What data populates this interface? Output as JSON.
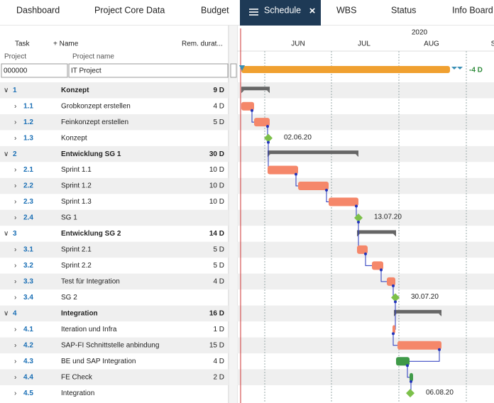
{
  "tabs": [
    "Dashboard",
    "Project Core Data",
    "Budget",
    "Schedule",
    "WBS",
    "Status",
    "Info Board"
  ],
  "columns": {
    "task": "Task",
    "name": "+ Name",
    "duration": "Rem. durat...",
    "project": "Project",
    "project_name": "Project name"
  },
  "project": {
    "number": "000000",
    "name": "IT Project",
    "delta": "-4 D"
  },
  "timeline": {
    "year": "2020",
    "months": [
      "JUN",
      "JUL",
      "AUG",
      "S"
    ]
  },
  "rows": [
    {
      "id": "1",
      "name": "Konzept",
      "duration": "9 D"
    },
    {
      "id": "1.1",
      "name": "Grobkonzept erstellen",
      "duration": "4 D"
    },
    {
      "id": "1.2",
      "name": "Feinkonzept erstellen",
      "duration": "5 D"
    },
    {
      "id": "1.3",
      "name": "Konzept",
      "milestone": "02.06.20"
    },
    {
      "id": "2",
      "name": "Entwicklung SG 1",
      "duration": "30 D"
    },
    {
      "id": "2.1",
      "name": "Sprint 1.1",
      "duration": "10 D"
    },
    {
      "id": "2.2",
      "name": "Sprint 1.2",
      "duration": "10 D"
    },
    {
      "id": "2.3",
      "name": "Sprint 1.3",
      "duration": "10 D"
    },
    {
      "id": "2.4",
      "name": "SG 1",
      "milestone": "13.07.20"
    },
    {
      "id": "3",
      "name": "Entwicklung SG 2",
      "duration": "14 D"
    },
    {
      "id": "3.1",
      "name": "Sprint 2.1",
      "duration": "5 D"
    },
    {
      "id": "3.2",
      "name": "Sprint 2.2",
      "duration": "5 D"
    },
    {
      "id": "3.3",
      "name": "Test für  Integration",
      "duration": "4 D"
    },
    {
      "id": "3.4",
      "name": "SG 2",
      "milestone": "30.07.20"
    },
    {
      "id": "4",
      "name": "Integration",
      "duration": "16 D"
    },
    {
      "id": "4.1",
      "name": "Iteration und Infra",
      "duration": "1 D"
    },
    {
      "id": "4.2",
      "name": "SAP-FI Schnittstelle anbindung",
      "duration": "15 D"
    },
    {
      "id": "4.3",
      "name": "BE und SAP Integration",
      "duration": "4 D"
    },
    {
      "id": "4.4",
      "name": "FE Check",
      "duration": "2 D"
    },
    {
      "id": "4.5",
      "name": "Integration",
      "milestone": "06.08.20"
    }
  ]
}
